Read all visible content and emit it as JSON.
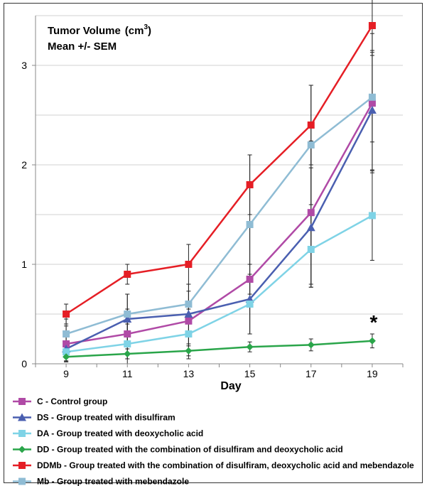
{
  "chart_data": {
    "type": "line",
    "title": "Tumor Volume",
    "title_unit_base": "(cm",
    "title_unit_sup": "3",
    "title_unit_close": ")",
    "subtitle": "Mean +/- SEM",
    "xlabel": "Day",
    "x": [
      9,
      11,
      13,
      15,
      17,
      19
    ],
    "x_tick_labels": [
      "9",
      "11",
      "13",
      "15",
      "17",
      "19"
    ],
    "xlim": [
      8,
      20
    ],
    "ylim": [
      0,
      3.5
    ],
    "y_ticks": [
      0,
      1,
      2,
      3
    ],
    "y_tick_labels": [
      "0",
      "1",
      "2",
      "3"
    ],
    "grid": true,
    "legend_position": "bottom",
    "annotation": {
      "text": "*",
      "x": 19,
      "y": 0.42
    },
    "series": [
      {
        "name": "C - Control group",
        "color": "#b04aa6",
        "marker": "square",
        "values": [
          0.2,
          0.3,
          0.43,
          0.85,
          1.52,
          2.62
        ],
        "err": [
          0.18,
          0.25,
          0.3,
          0.55,
          0.72,
          0.7
        ]
      },
      {
        "name": "DS - Group treated with disulfiram",
        "color": "#4a5fb0",
        "marker": "triangle",
        "values": [
          0.15,
          0.45,
          0.5,
          0.65,
          1.37,
          2.55
        ],
        "err": [
          0.12,
          0.25,
          0.3,
          0.35,
          0.6,
          0.6
        ]
      },
      {
        "name": "DA - Group treated with deoxycholic acid",
        "color": "#7fd3e6",
        "marker": "square",
        "values": [
          0.12,
          0.2,
          0.3,
          0.6,
          1.15,
          1.49
        ],
        "err": [
          0.1,
          0.2,
          0.25,
          0.3,
          0.38,
          0.45
        ]
      },
      {
        "name": "DD - Group treated with the combination of disulfiram and deoxycholic acid",
        "color": "#2aa54a",
        "marker": "diamond",
        "values": [
          0.07,
          0.1,
          0.13,
          0.17,
          0.19,
          0.23
        ],
        "err": [
          0.05,
          0.05,
          0.05,
          0.05,
          0.06,
          0.07
        ]
      },
      {
        "name": "DDMb - Group treated with the combination of disulfiram, deoxycholic acid and mebendazole",
        "color": "#e51e25",
        "marker": "square",
        "values": [
          0.5,
          0.9,
          1.0,
          1.8,
          2.4,
          3.4
        ],
        "err": [
          0.1,
          0.1,
          0.2,
          0.3,
          0.4,
          0.3
        ]
      },
      {
        "name": "Mb - Group treated with mebendazole",
        "color": "#8fbcd4",
        "marker": "square",
        "values": [
          0.3,
          0.5,
          0.6,
          1.4,
          2.2,
          2.68
        ],
        "err": [
          0.15,
          0.2,
          0.2,
          0.7,
          0.6,
          0.45
        ]
      }
    ]
  }
}
